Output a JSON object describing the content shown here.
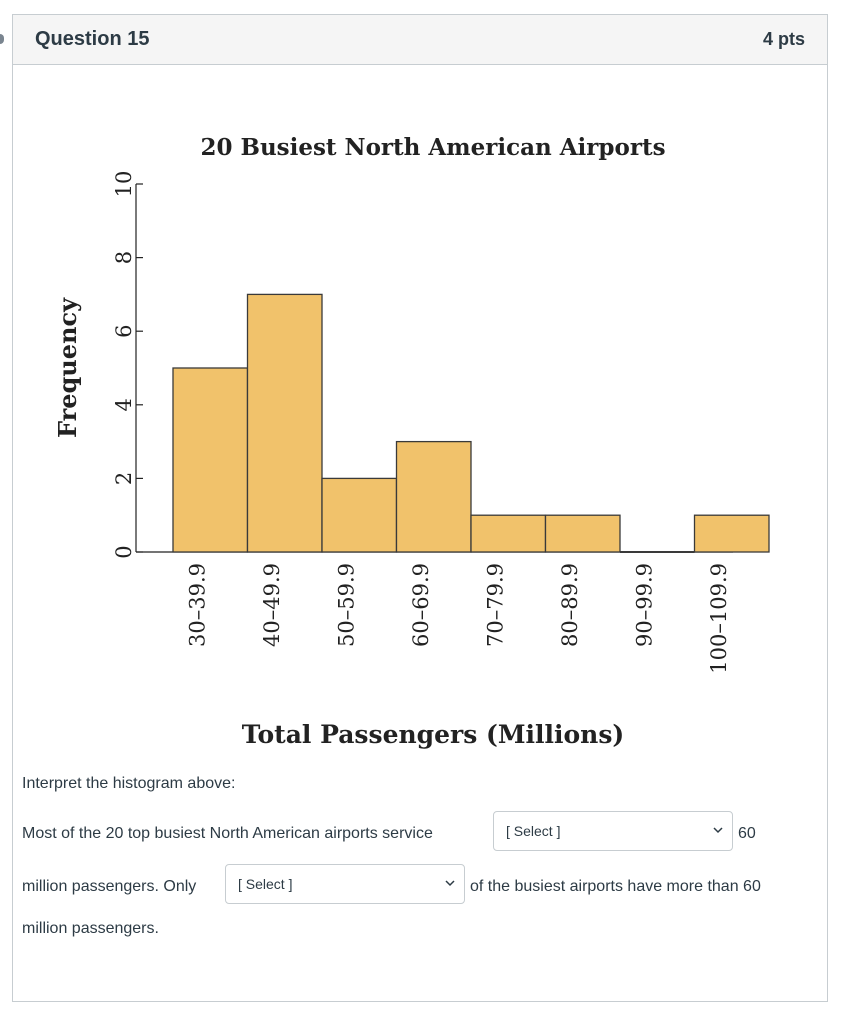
{
  "question": {
    "title": "Question 15",
    "points": "4 pts"
  },
  "chart_data": {
    "type": "bar",
    "title": "20 Busiest North American Airports",
    "xlabel": "Total Passengers (Millions)",
    "ylabel": "Frequency",
    "categories": [
      "30–39.9",
      "40–49.9",
      "50–59.9",
      "60–69.9",
      "70–79.9",
      "80–89.9",
      "90–99.9",
      "100–109.9"
    ],
    "values": [
      5,
      7,
      2,
      3,
      1,
      1,
      0,
      1
    ],
    "ylim": [
      0,
      10
    ],
    "yticks": [
      0,
      2,
      4,
      6,
      8,
      10
    ],
    "bar_color": "#f1c26b",
    "grid": false
  },
  "body": {
    "prompt": "Interpret the histogram above:",
    "sentence1_before": "Most of the 20 top busiest North American airports service",
    "sentence1_after": "60",
    "sentence2_before": "million passengers. Only",
    "sentence2_after": "of the busiest airports have more than 60",
    "sentence3": "million passengers.",
    "select1_value": "[ Select ]",
    "select2_value": "[ Select ]"
  }
}
